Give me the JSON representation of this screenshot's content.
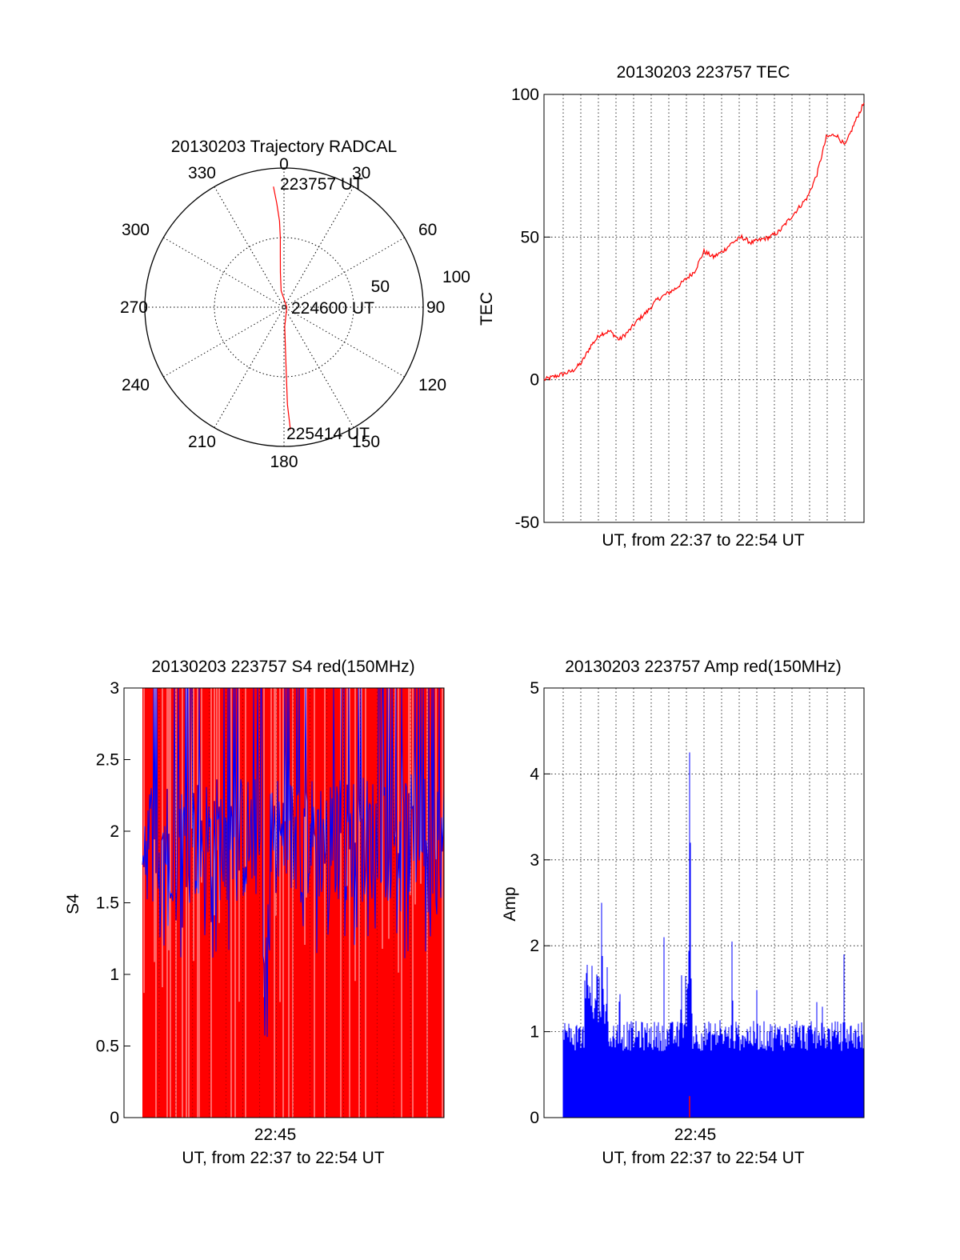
{
  "chart_data": [
    {
      "type": "polar",
      "title": "20130203 Trajectory RADCAL",
      "angle_labels": [
        "0",
        "30",
        "60",
        "90",
        "120",
        "150",
        "180",
        "210",
        "240",
        "270",
        "300",
        "330"
      ],
      "radial_labels": [
        "50",
        "100"
      ],
      "rlim": [
        0,
        100
      ],
      "series": [
        {
          "color": "#ff0000",
          "points": [
            {
              "az": 355,
              "r": 87
            },
            {
              "az": 356,
              "r": 75
            },
            {
              "az": 357,
              "r": 62
            },
            {
              "az": 357,
              "r": 50
            },
            {
              "az": 356,
              "r": 38
            },
            {
              "az": 354,
              "r": 25
            },
            {
              "az": 350,
              "r": 12
            },
            {
              "az": 90,
              "r": 2
            },
            {
              "az": 178,
              "r": 14
            },
            {
              "az": 178,
              "r": 30
            },
            {
              "az": 178,
              "r": 50
            },
            {
              "az": 178,
              "r": 70
            },
            {
              "az": 177,
              "r": 88
            }
          ]
        }
      ],
      "annotations": [
        "223757 UT",
        "224600 UT",
        "225414 UT"
      ]
    },
    {
      "type": "line",
      "title": "20130203 223757 TEC",
      "xlabel": "UT, from 22:37 to 22:54 UT",
      "ylabel": "TEC",
      "ylim": [
        -50,
        100
      ],
      "yticks": [
        "100",
        "50",
        "0",
        "-50"
      ],
      "xlim": [
        0,
        17
      ],
      "grid": true,
      "series": [
        {
          "color": "#ff0000",
          "x": [
            0,
            0.5,
            1,
            1.5,
            2,
            2.5,
            3,
            3.5,
            4,
            4.5,
            5,
            5.5,
            6,
            6.5,
            7,
            7.5,
            8,
            8.5,
            9,
            9.5,
            10,
            10.5,
            11,
            11.5,
            12,
            12.5,
            13,
            13.5,
            14,
            14.5,
            15,
            15.5,
            16,
            16.5,
            17
          ],
          "y": [
            0,
            1,
            2,
            3,
            6,
            12,
            16,
            17,
            14,
            17,
            21,
            24,
            28,
            30,
            32,
            35,
            38,
            45,
            43,
            45,
            48,
            50,
            48,
            49,
            50,
            52,
            56,
            60,
            64,
            72,
            85,
            86,
            82,
            90,
            97
          ]
        }
      ]
    },
    {
      "type": "line",
      "title": "20130203 223757 S4 red(150MHz)",
      "xlabel": "UT, from 22:37 to 22:54 UT",
      "ylabel": "S4",
      "ylim": [
        0,
        3
      ],
      "yticks": [
        "3",
        "2.5",
        "2",
        "1.5",
        "1",
        "0.5",
        "0"
      ],
      "xticks": [
        "22:45"
      ],
      "series": [
        {
          "color": "#ff0000",
          "description_levels": [
            0,
            3
          ]
        },
        {
          "color": "#0000ff",
          "mean_level": 1.9
        }
      ]
    },
    {
      "type": "bar",
      "title": "20130203 223757 Amp red(150MHz)",
      "xlabel": "UT, from 22:37 to 22:54 UT",
      "ylabel": "Amp",
      "ylim": [
        0,
        5
      ],
      "yticks": [
        "5",
        "4",
        "3",
        "2",
        "1",
        "0"
      ],
      "xticks": [
        "22:45"
      ],
      "grid": true,
      "series": [
        {
          "color": "#0000ff",
          "peak": 4.25,
          "typical": 0.95
        }
      ]
    }
  ]
}
